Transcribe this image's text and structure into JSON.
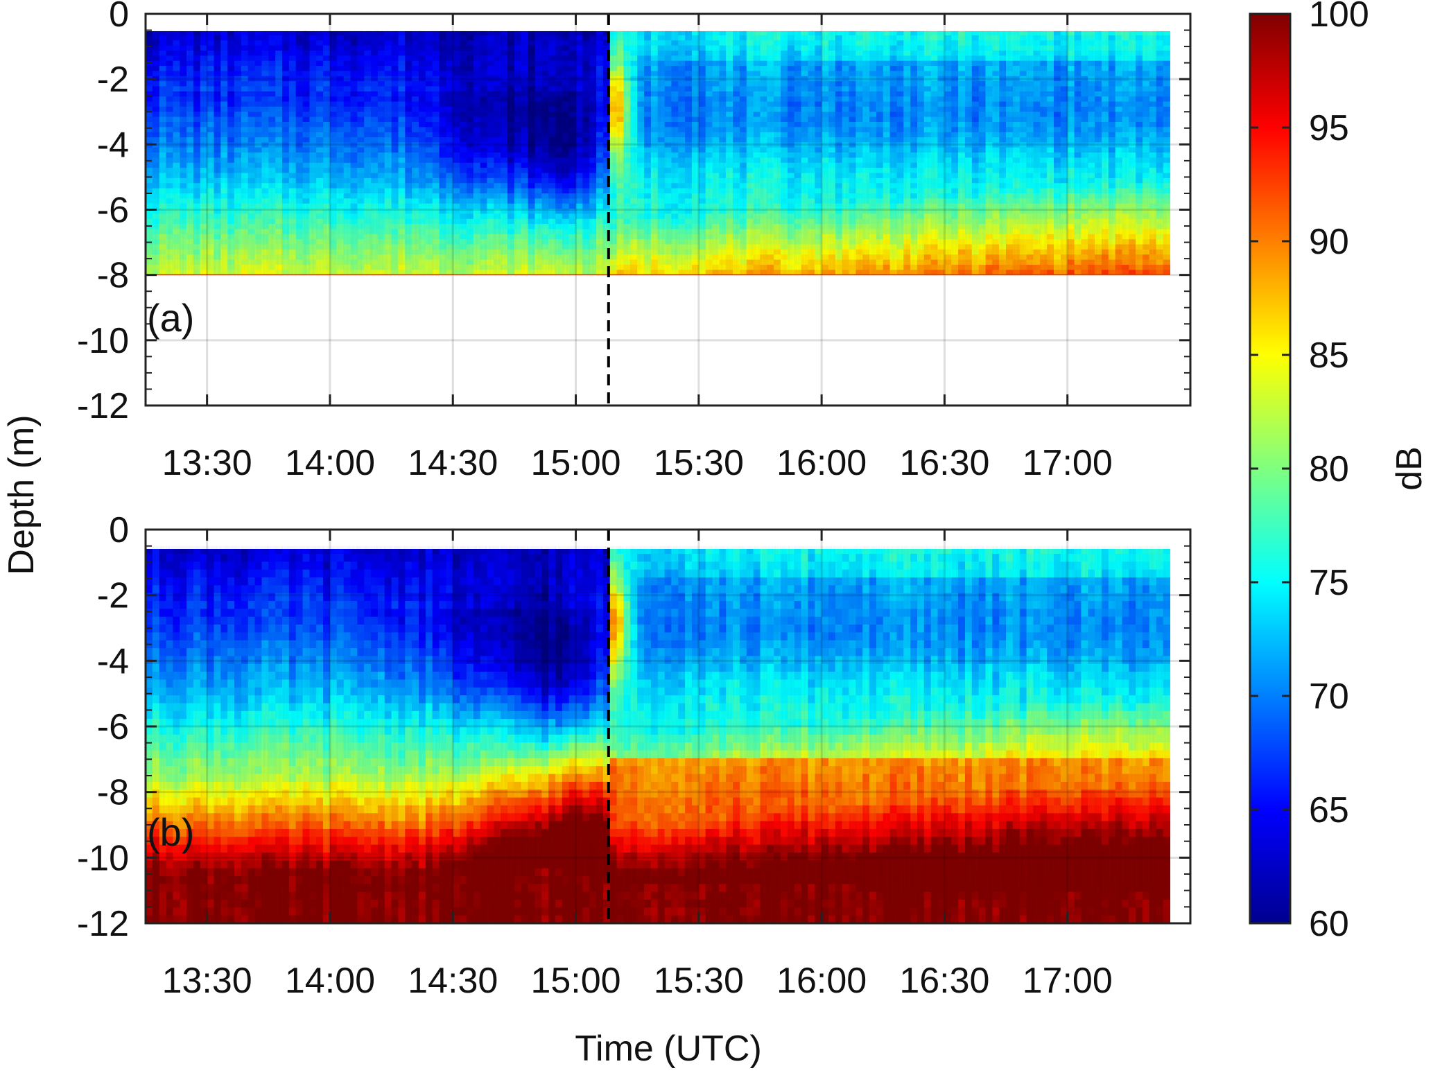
{
  "chart_data": {
    "type": "heatmap",
    "xlabel": "Time (UTC)",
    "ylabel": "Depth (m)",
    "x_range": [
      "13:15",
      "17:30"
    ],
    "x_ticks": [
      "13:30",
      "14:00",
      "14:30",
      "15:00",
      "15:30",
      "16:00",
      "16:30",
      "17:00"
    ],
    "y_range": [
      -12,
      0
    ],
    "y_ticks": [
      "0",
      "-2",
      "-4",
      "-6",
      "-8",
      "-10",
      "-12"
    ],
    "grid": true,
    "event_line_time": "15:08",
    "colorbar": {
      "label": "dB",
      "range": [
        60,
        100
      ],
      "ticks": [
        "100",
        "95",
        "90",
        "85",
        "80",
        "75",
        "70",
        "65",
        "60"
      ],
      "colormap": "jet"
    },
    "panels": [
      {
        "label": "(a)",
        "data_depth_range": [
          -8,
          -0.5
        ],
        "description_levels": "low 62-72 dB near surface before 15:08, rising to 85-92 dB near -8 m after 15:30"
      },
      {
        "label": "(b)",
        "data_depth_range": [
          -12,
          -0.5
        ],
        "description_levels": "saturated ~100 dB below -10.5 m; 85-92 dB band from -6 m downward after 15:30"
      }
    ]
  }
}
